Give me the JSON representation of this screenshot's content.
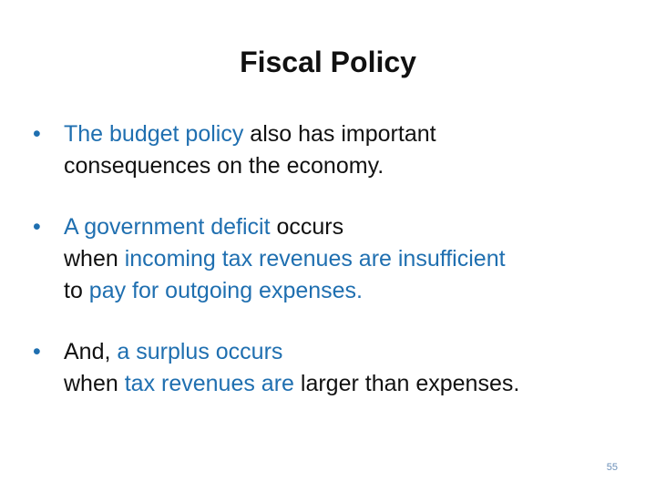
{
  "slide": {
    "title": "Fiscal Policy",
    "bullet_marker": "•",
    "accent_color": "#1f6fb0",
    "page_number": "55"
  },
  "bullets": [
    {
      "lines": [
        [
          {
            "text": "The budget policy",
            "hl": true
          },
          {
            "text": " also has important",
            "hl": false
          }
        ],
        [
          {
            "text": "consequences on the economy.",
            "hl": false
          }
        ]
      ]
    },
    {
      "lines": [
        [
          {
            "text": "A government deficit",
            "hl": true
          },
          {
            "text": " occurs",
            "hl": false
          }
        ],
        [
          {
            "text": "when ",
            "hl": false
          },
          {
            "text": "incoming tax revenues are insufficient",
            "hl": true
          }
        ],
        [
          {
            "text": "to ",
            "hl": false
          },
          {
            "text": "pay for outgoing expenses.",
            "hl": true
          }
        ]
      ]
    },
    {
      "lines": [
        [
          {
            "text": "And, ",
            "hl": false
          },
          {
            "text": "a surplus occurs",
            "hl": true
          }
        ],
        [
          {
            "text": "when ",
            "hl": false
          },
          {
            "text": "tax revenues are",
            "hl": true
          },
          {
            "text": " larger than expenses.",
            "hl": false
          }
        ]
      ]
    }
  ]
}
